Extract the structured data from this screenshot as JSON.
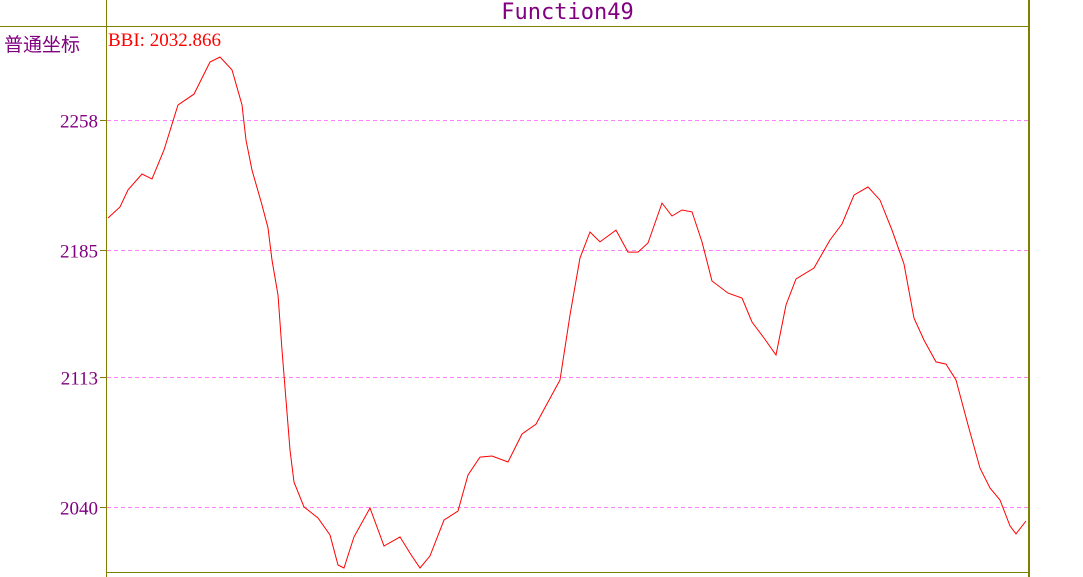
{
  "header": {
    "title": "Function49",
    "coord_mode": "普通坐标"
  },
  "legend": {
    "text": "BBI: 2032.866"
  },
  "colors": {
    "line": "#ff0000",
    "grid": "#ff80ff",
    "frame": "#808000",
    "text": "#800080"
  },
  "chart_data": {
    "type": "line",
    "title": "Function49",
    "grid": true,
    "yticks": [
      2258,
      2185,
      2113,
      2040
    ],
    "series": [
      {
        "name": "BBI",
        "x": [
          0,
          6,
          10,
          17,
          22,
          28,
          35,
          43,
          51,
          56,
          62,
          67,
          69,
          72,
          77,
          80,
          82,
          85,
          87,
          89,
          91,
          93,
          98,
          105,
          111,
          115,
          118,
          123,
          131,
          138,
          146,
          151,
          156,
          161,
          168,
          175,
          180,
          186,
          192,
          200,
          207,
          214,
          220,
          226,
          231,
          236,
          241,
          246,
          254,
          260,
          265,
          270,
          277,
          282,
          287,
          292,
          297,
          302,
          310,
          317,
          322,
          328,
          334,
          339,
          344,
          353,
          361,
          367,
          373,
          380,
          386,
          392,
          398,
          403,
          408,
          414,
          419,
          424,
          430,
          436,
          441,
          446,
          451,
          454,
          459
        ],
        "values": [
          2202.8,
          2209.0,
          2218.6,
          2227.6,
          2224.8,
          2241.1,
          2266.5,
          2272.6,
          2290.7,
          2293.5,
          2286.2,
          2266.5,
          2246.7,
          2229.8,
          2210.1,
          2197.2,
          2179.1,
          2159.4,
          2128.4,
          2100.2,
          2072.1,
          2054.0,
          2040.0,
          2033.8,
          2024.2,
          2007.3,
          2005.6,
          2023.1,
          2039.4,
          2018.0,
          2023.1,
          2014.0,
          2005.6,
          2012.4,
          2032.6,
          2037.7,
          2058.0,
          2068.1,
          2068.7,
          2065.3,
          2081.1,
          2086.7,
          2099.1,
          2111.5,
          2148.1,
          2180.3,
          2194.9,
          2189.3,
          2196.0,
          2183.6,
          2183.6,
          2188.7,
          2211.2,
          2203.9,
          2207.3,
          2206.2,
          2189.3,
          2167.3,
          2160.5,
          2157.7,
          2144.2,
          2135.2,
          2125.6,
          2153.8,
          2168.4,
          2174.6,
          2190.4,
          2199.4,
          2215.7,
          2220.3,
          2212.9,
          2196.0,
          2176.9,
          2146.4,
          2134.0,
          2121.7,
          2120.5,
          2111.5,
          2086.2,
          2061.9,
          2050.7,
          2043.9,
          2029.3,
          2024.8,
          2032.1
        ]
      }
    ]
  }
}
